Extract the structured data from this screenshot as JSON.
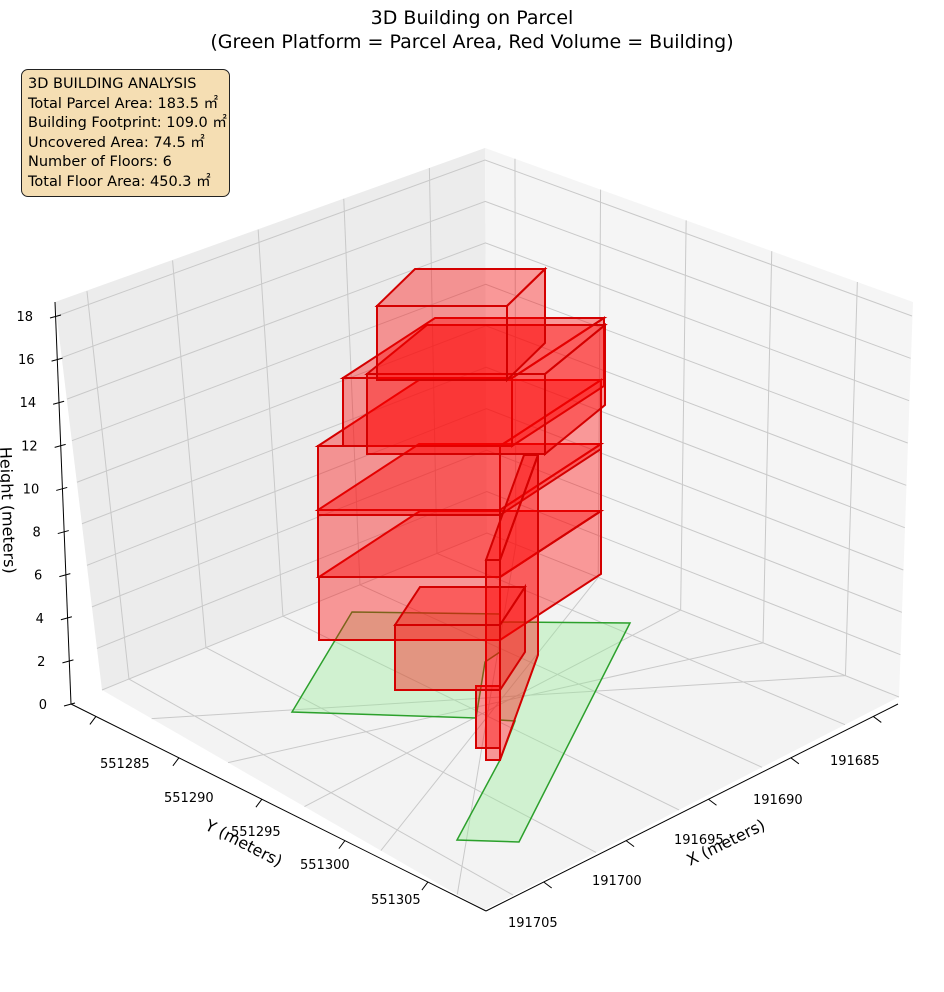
{
  "chart_data": {
    "type": "3d-bar",
    "title": "3D Building on Parcel",
    "subtitle": "(Green Platform = Parcel Area, Red Volume = Building)",
    "xlabel": "X (meters)",
    "ylabel": "Y (meters)",
    "zlabel": "Height (meters)",
    "x_ticks": [
      "191685",
      "191690",
      "191695",
      "191700",
      "191705"
    ],
    "y_ticks": [
      "551285",
      "551290",
      "551295",
      "551300",
      "551305"
    ],
    "z_ticks": [
      "0",
      "2",
      "4",
      "6",
      "8",
      "10",
      "12",
      "14",
      "16",
      "18"
    ],
    "grid": true,
    "colors": {
      "parcel_fill": "#90ee90",
      "parcel_edge": "#2ca02c",
      "building_fill": "#ff0000",
      "building_edge": "#d40000",
      "pane": "#f2f2f2"
    },
    "parcel": {
      "name": "Parcel Area",
      "color": "green"
    },
    "building": {
      "name": "Building",
      "color": "red",
      "floors": 6
    }
  },
  "info_box": {
    "heading": "3D BUILDING ANALYSIS",
    "lines": [
      "Total Parcel Area: 183.5 ㎡",
      "Building Footprint: 109.0 ㎡",
      "Uncovered Area: 74.5 ㎡",
      "Number of Floors: 6",
      "Total Floor Area: 450.3 ㎡"
    ]
  }
}
